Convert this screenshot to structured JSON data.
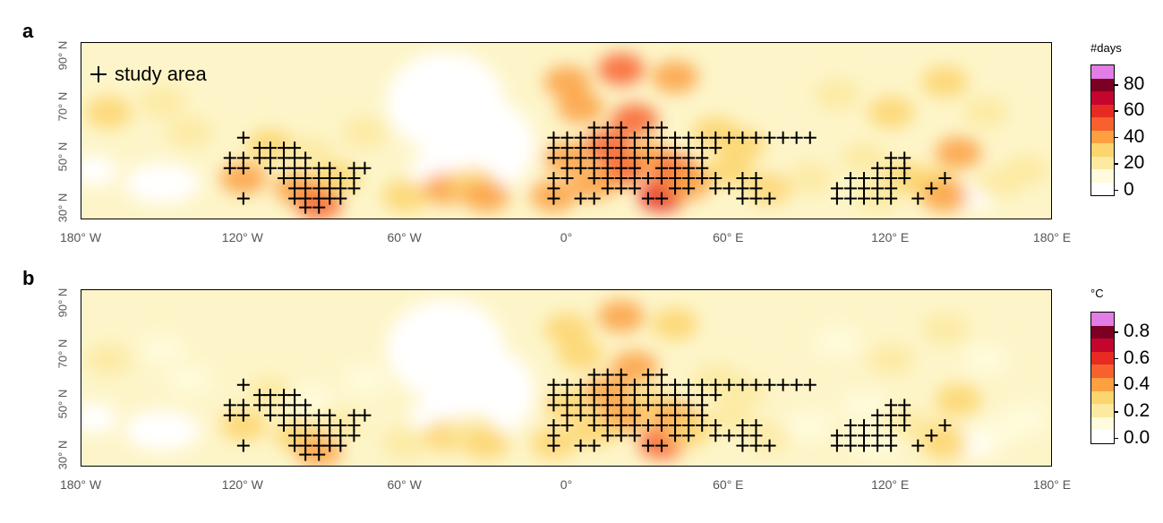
{
  "panels": [
    {
      "label": "a",
      "unit": "#days",
      "ticks": [
        "80",
        "60",
        "40",
        "20",
        "0"
      ]
    },
    {
      "label": "b",
      "unit": "°C",
      "ticks": [
        "0.8",
        "0.6",
        "0.4",
        "0.2",
        "0.0"
      ]
    }
  ],
  "legend": {
    "text": "study area"
  },
  "x_ticks": [
    "180° W",
    "120° W",
    "60° W",
    "0°",
    "60° E",
    "120° E",
    "180° E"
  ],
  "x_tick_lons": [
    -180,
    -120,
    -60,
    0,
    60,
    120,
    180
  ],
  "y_ticks": [
    "90° N",
    "70° N",
    "50° N",
    "30° N"
  ],
  "y_tick_lats": [
    90,
    70,
    50,
    30
  ],
  "colors": [
    "#ffffff",
    "#fffbdc",
    "#fdeaa0",
    "#fdd56e",
    "#fca042",
    "#f8612e",
    "#e82b22",
    "#c4052d",
    "#7c0024",
    "#e27de6"
  ],
  "hotspots": [
    [
      -170,
      68,
      3
    ],
    [
      -150,
      72,
      2
    ],
    [
      -140,
      60,
      2
    ],
    [
      -120,
      42,
      4
    ],
    [
      -100,
      38,
      4
    ],
    [
      -92,
      32,
      5
    ],
    [
      -85,
      42,
      3
    ],
    [
      -110,
      55,
      3
    ],
    [
      -75,
      60,
      2
    ],
    [
      -60,
      35,
      3
    ],
    [
      -45,
      38,
      4
    ],
    [
      -35,
      40,
      3
    ],
    [
      -30,
      35,
      4
    ],
    [
      -95,
      52,
      2
    ],
    [
      0,
      80,
      4
    ],
    [
      20,
      85,
      5
    ],
    [
      40,
      82,
      4
    ],
    [
      5,
      70,
      4
    ],
    [
      25,
      65,
      5
    ],
    [
      15,
      55,
      5
    ],
    [
      30,
      50,
      4
    ],
    [
      20,
      45,
      5
    ],
    [
      40,
      45,
      5
    ],
    [
      35,
      35,
      6
    ],
    [
      45,
      40,
      4
    ],
    [
      55,
      60,
      3
    ],
    [
      60,
      45,
      3
    ],
    [
      75,
      38,
      3
    ],
    [
      65,
      55,
      3
    ],
    [
      10,
      40,
      4
    ],
    [
      0,
      50,
      4
    ],
    [
      -5,
      35,
      4
    ],
    [
      100,
      75,
      2
    ],
    [
      120,
      68,
      3
    ],
    [
      140,
      80,
      3
    ],
    [
      155,
      68,
      2
    ],
    [
      110,
      50,
      2
    ],
    [
      125,
      42,
      3
    ],
    [
      135,
      40,
      3
    ],
    [
      140,
      35,
      4
    ],
    [
      160,
      40,
      2
    ],
    [
      170,
      45,
      2
    ],
    [
      90,
      42,
      2
    ],
    [
      115,
      35,
      2
    ],
    [
      145,
      52,
      4
    ]
  ],
  "white_regions": [
    [
      -45,
      72,
      22,
      20
    ],
    [
      -30,
      55,
      18,
      18
    ],
    [
      -50,
      45,
      8,
      8
    ],
    [
      -150,
      40,
      14,
      8
    ],
    [
      -175,
      45,
      8,
      6
    ],
    [
      150,
      35,
      10,
      5
    ],
    [
      80,
      40,
      8,
      4
    ]
  ],
  "study_area": [
    {
      "lat": 58,
      "lons": [
        -120
      ]
    },
    {
      "lat": 54,
      "lons": [
        -114,
        -110,
        -105,
        -101
      ]
    },
    {
      "lat": 50,
      "lons": [
        -125,
        -120,
        -114,
        -110,
        -105,
        -101,
        -97
      ]
    },
    {
      "lat": 46,
      "lons": [
        -125,
        -120,
        -110,
        -105,
        -101,
        -97,
        -92,
        -88,
        -79,
        -75
      ]
    },
    {
      "lat": 42,
      "lons": [
        -105,
        -101,
        -97,
        -92,
        -88,
        -84,
        -79
      ]
    },
    {
      "lat": 38,
      "lons": [
        -101,
        -97,
        -92,
        -88,
        -84,
        -79
      ]
    },
    {
      "lat": 34,
      "lons": [
        -120,
        -101,
        -97,
        -92,
        -88,
        -84
      ]
    },
    {
      "lat": 30.5,
      "lons": [
        -97,
        -92
      ]
    },
    {
      "lat": 62,
      "lons": [
        10,
        15,
        20,
        30,
        35
      ]
    },
    {
      "lat": 58,
      "lons": [
        -5,
        0,
        5,
        10,
        15,
        20,
        25,
        30,
        35,
        40,
        45,
        50,
        55,
        60,
        65,
        70,
        75,
        80,
        85,
        90
      ]
    },
    {
      "lat": 54,
      "lons": [
        -5,
        0,
        5,
        10,
        15,
        20,
        25,
        30,
        35,
        40,
        45,
        50,
        55
      ]
    },
    {
      "lat": 50,
      "lons": [
        -5,
        0,
        5,
        10,
        15,
        20,
        25,
        30,
        35,
        40,
        45,
        50
      ]
    },
    {
      "lat": 46,
      "lons": [
        0,
        5,
        10,
        15,
        20,
        25,
        35,
        40,
        45,
        50
      ]
    },
    {
      "lat": 42,
      "lons": [
        -5,
        0,
        10,
        15,
        20,
        25,
        30,
        35,
        40,
        45,
        50,
        55,
        65,
        70
      ]
    },
    {
      "lat": 38,
      "lons": [
        -5,
        15,
        20,
        25,
        40,
        45,
        55,
        60,
        65,
        70
      ]
    },
    {
      "lat": 34,
      "lons": [
        -5,
        5,
        10,
        30,
        35,
        65,
        70,
        75
      ]
    },
    {
      "lat": 50,
      "lons": [
        120,
        125
      ]
    },
    {
      "lat": 46,
      "lons": [
        115,
        120,
        125
      ]
    },
    {
      "lat": 42,
      "lons": [
        105,
        110,
        115,
        120,
        125,
        140
      ]
    },
    {
      "lat": 38,
      "lons": [
        100,
        105,
        110,
        115,
        120,
        135
      ]
    },
    {
      "lat": 34,
      "lons": [
        100,
        105,
        110,
        115,
        120,
        130
      ]
    }
  ]
}
